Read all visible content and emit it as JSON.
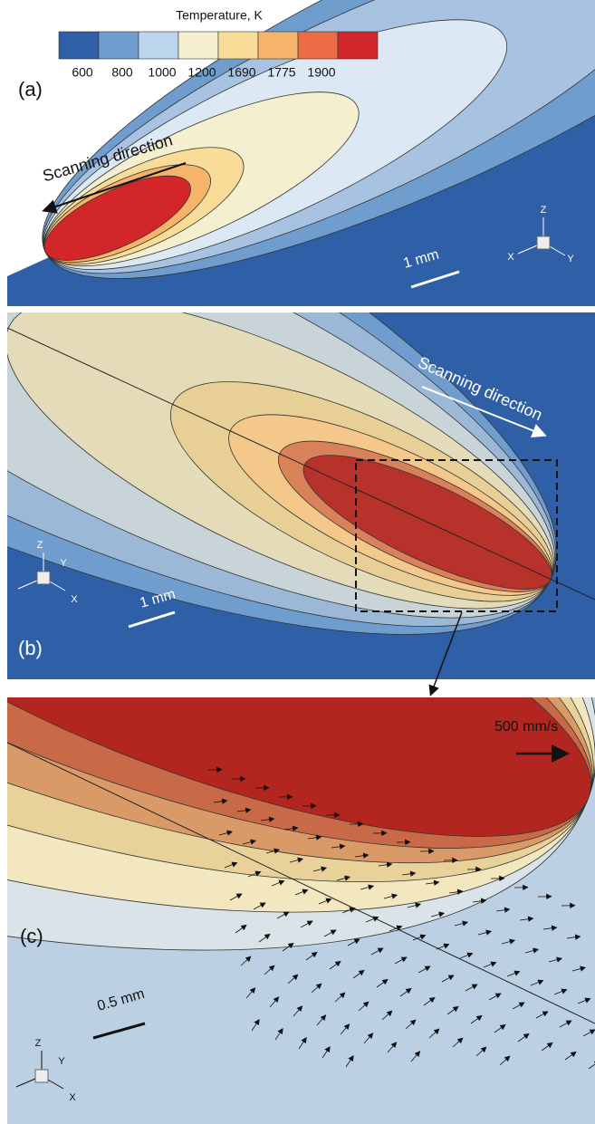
{
  "colorbar": {
    "title": "Temperature, K",
    "ticks": [
      "600",
      "800",
      "1000",
      "1200",
      "1690",
      "1775",
      "1900"
    ]
  },
  "panels": [
    {
      "label": "(a)",
      "direction": "Scanning direction",
      "scale": "1 mm",
      "axes": [
        "Z",
        "X",
        "Y"
      ]
    },
    {
      "label": "(b)",
      "direction": "Scanning direction",
      "scale": "1 mm",
      "axes": [
        "Z",
        "Y",
        "X"
      ]
    },
    {
      "label": "(c)",
      "velocity": "500 mm/s",
      "scale": "0.5 mm",
      "axes": [
        "Z",
        "Y",
        "X"
      ]
    }
  ]
}
